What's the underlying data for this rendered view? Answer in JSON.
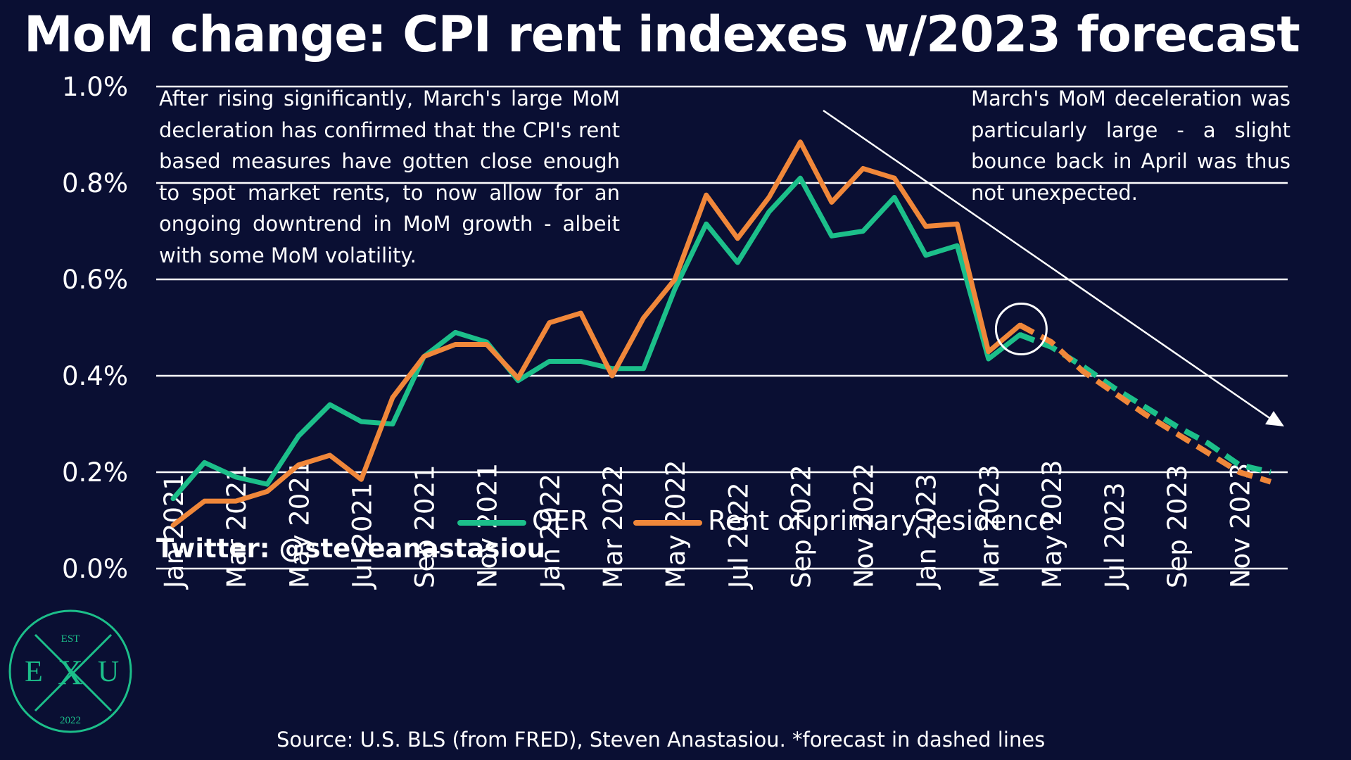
{
  "title": "MoM change: CPI rent indexes w/2023 forecast",
  "note_left": "After rising significantly, March's large MoM decleration has confirmed that the CPI's rent based measures have gotten close enough to spot market rents, to now allow for an ongoing downtrend in MoM growth - albeit with some MoM volatility.",
  "note_right": "March's MoM deceleration was particularly large - a slight bounce back in April was thus not unexpected.",
  "twitter": "Twitter: @steveanastasiou",
  "source": "Source: U.S. BLS (from FRED), Steven Anastasiou. *forecast in dashed lines",
  "logo": {
    "est": "EST",
    "left": "E",
    "center": "X",
    "right": "U",
    "year": "2022"
  },
  "colors": {
    "background": "#0a0f33",
    "oer": "#1cbf8a",
    "rent": "#f0873a",
    "grid": "#ffffff",
    "logo": "#1cbf8a"
  },
  "chart_data": {
    "type": "line",
    "title": "MoM change: CPI rent indexes w/2023 forecast",
    "xlabel": "",
    "ylabel": "",
    "ylim": [
      0,
      1.0
    ],
    "y_ticks": [
      "0.0%",
      "0.2%",
      "0.4%",
      "0.6%",
      "0.8%",
      "1.0%"
    ],
    "y_tick_values": [
      0,
      0.2,
      0.4,
      0.6,
      0.8,
      1.0
    ],
    "grid": "horizontal",
    "legend_position": "bottom-center",
    "x": [
      "Jan 2021",
      "Feb 2021",
      "Mar 2021",
      "Apr 2021",
      "May 2021",
      "Jun 2021",
      "Jul 2021",
      "Aug 2021",
      "Sep 2021",
      "Oct 2021",
      "Nov 2021",
      "Dec 2021",
      "Jan 2022",
      "Feb 2022",
      "Mar 2022",
      "Apr 2022",
      "May 2022",
      "Jun 2022",
      "Jul 2022",
      "Aug 2022",
      "Sep 2022",
      "Oct 2022",
      "Nov 2022",
      "Dec 2022",
      "Jan 2023",
      "Feb 2023",
      "Mar 2023",
      "Apr 2023",
      "May 2023",
      "Jun 2023",
      "Jul 2023",
      "Aug 2023",
      "Sep 2023",
      "Oct 2023",
      "Nov 2023",
      "Dec 2023"
    ],
    "x_tick_labels": [
      "Jan 2021",
      "Mar 2021",
      "May 2021",
      "Jul 2021",
      "Sep 2021",
      "Nov 2021",
      "Jan 2022",
      "Mar 2022",
      "May 2022",
      "Jul 2022",
      "Sep 2022",
      "Nov 2022",
      "Jan 2023",
      "Mar 2023",
      "May 2023",
      "Jul 2023",
      "Sep 2023",
      "Nov 2023"
    ],
    "forecast_start_index": 27,
    "series": [
      {
        "name": "OER",
        "color": "#1cbf8a",
        "values": [
          0.145,
          0.22,
          0.19,
          0.175,
          0.275,
          0.34,
          0.305,
          0.3,
          0.44,
          0.49,
          0.47,
          0.39,
          0.43,
          0.43,
          0.415,
          0.415,
          0.58,
          0.715,
          0.635,
          0.74,
          0.81,
          0.69,
          0.7,
          0.77,
          0.65,
          0.67,
          0.435,
          0.485,
          0.46,
          0.42,
          0.375,
          0.335,
          0.295,
          0.26,
          0.215,
          0.2
        ]
      },
      {
        "name": "Rent of primary residence",
        "color": "#f0873a",
        "values": [
          0.09,
          0.14,
          0.14,
          0.16,
          0.215,
          0.235,
          0.185,
          0.355,
          0.44,
          0.465,
          0.465,
          0.395,
          0.51,
          0.53,
          0.4,
          0.52,
          0.6,
          0.775,
          0.685,
          0.77,
          0.885,
          0.76,
          0.83,
          0.81,
          0.71,
          0.715,
          0.45,
          0.505,
          0.47,
          0.41,
          0.365,
          0.32,
          0.28,
          0.24,
          0.2,
          0.18
        ]
      }
    ],
    "annotations": [
      {
        "type": "circle",
        "target": "Apr 2023",
        "note": "April bounce"
      },
      {
        "type": "arrow",
        "note": "downtrend"
      }
    ]
  }
}
